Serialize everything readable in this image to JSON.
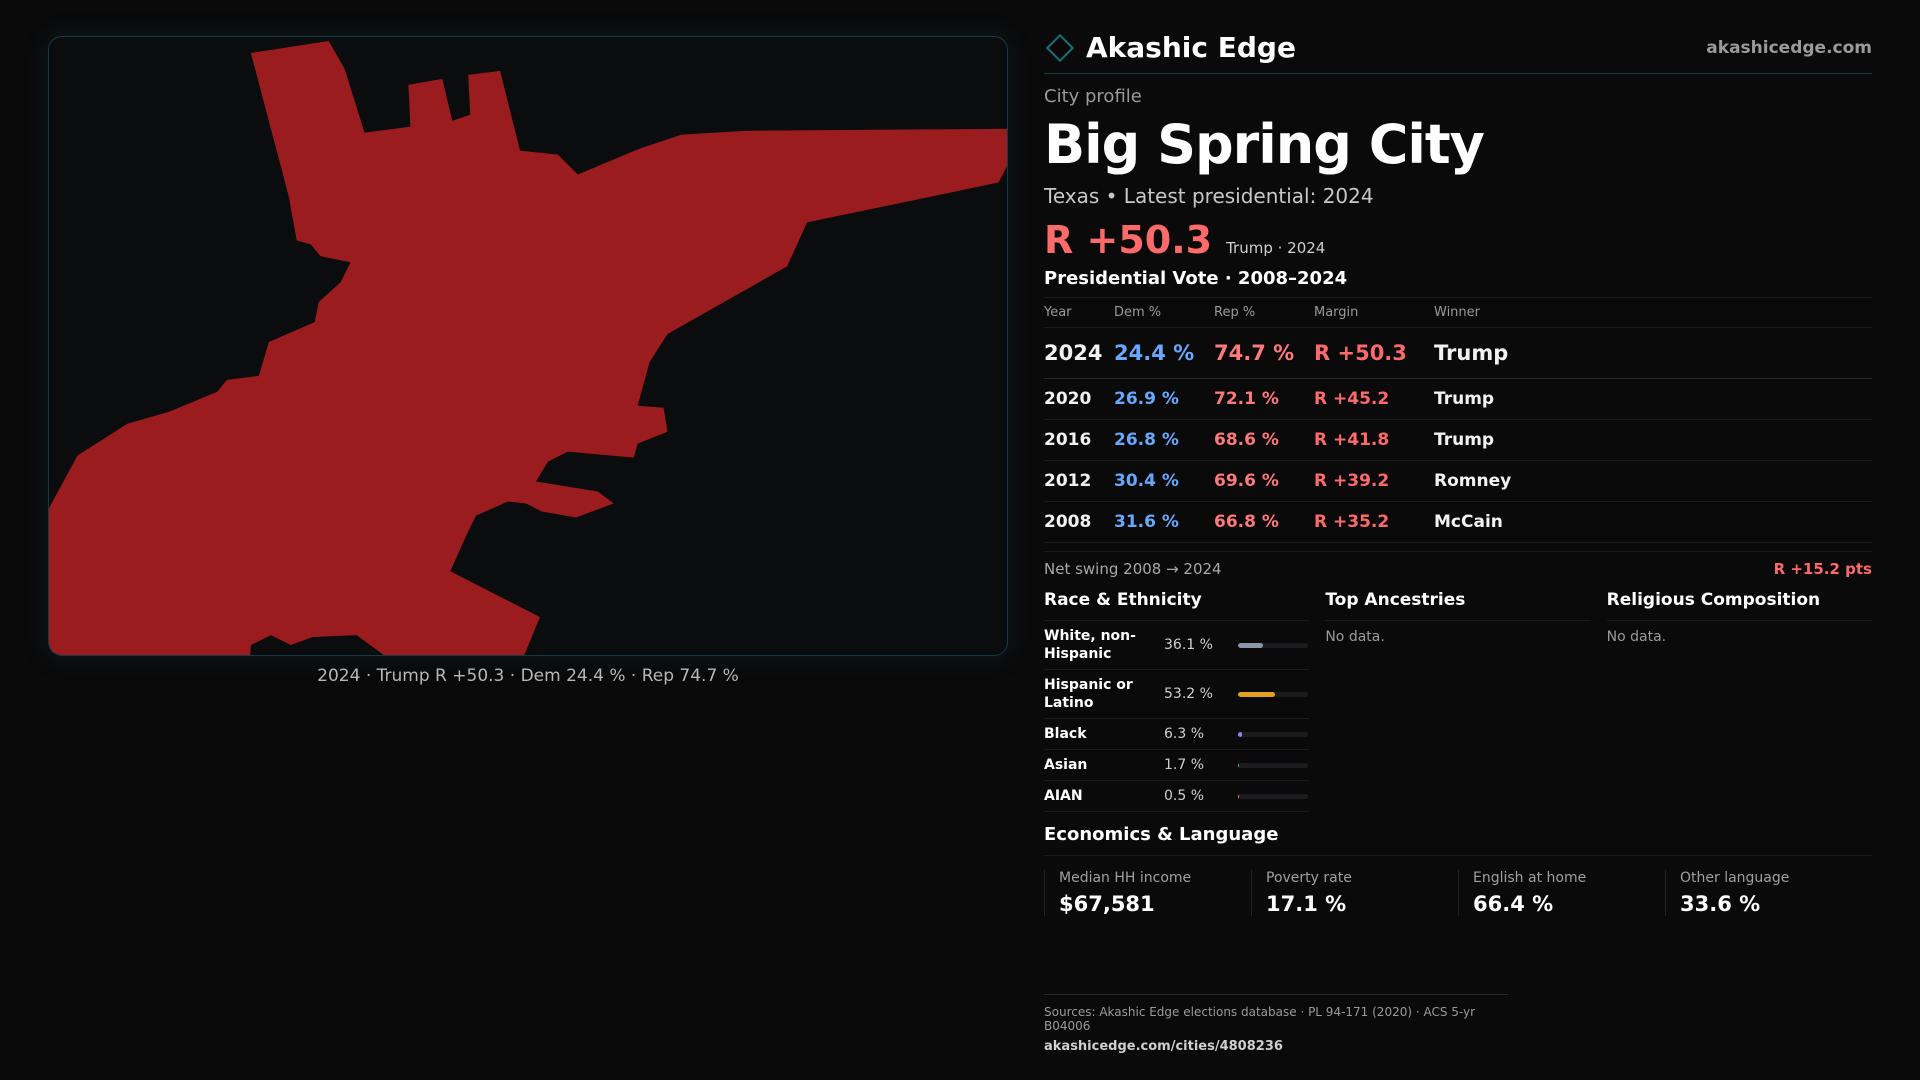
{
  "brand": {
    "name": "Akashic Edge",
    "site": "akashicedge.com"
  },
  "map": {
    "fill_color": "#9b1c1f",
    "caption": "2024 · Trump R +50.3 · Dem 24.4 % · Rep 74.7 %"
  },
  "profile": {
    "eyebrow": "City profile",
    "title": "Big Spring City",
    "subline": "Texas • Latest presidential: 2024",
    "margin": "R +50.3",
    "margin_sub": "Trump · 2024"
  },
  "votes": {
    "title": "Presidential Vote · 2008–2024",
    "headers": {
      "year": "Year",
      "dem": "Dem %",
      "rep": "Rep %",
      "margin": "Margin",
      "winner": "Winner"
    },
    "rows": [
      {
        "year": "2024",
        "dem": "24.4 %",
        "rep": "74.7 %",
        "margin": "R +50.3",
        "winner": "Trump"
      },
      {
        "year": "2020",
        "dem": "26.9 %",
        "rep": "72.1 %",
        "margin": "R +45.2",
        "winner": "Trump"
      },
      {
        "year": "2016",
        "dem": "26.8 %",
        "rep": "68.6 %",
        "margin": "R +41.8",
        "winner": "Trump"
      },
      {
        "year": "2012",
        "dem": "30.4 %",
        "rep": "69.6 %",
        "margin": "R +39.2",
        "winner": "Romney"
      },
      {
        "year": "2008",
        "dem": "31.6 %",
        "rep": "66.8 %",
        "margin": "R +35.2",
        "winner": "McCain"
      }
    ],
    "swing_label": "Net swing 2008 → 2024",
    "swing_value": "R +15.2 pts"
  },
  "race": {
    "title": "Race & Ethnicity",
    "rows": [
      {
        "label": "White, non-Hispanic",
        "value": "36.1 %",
        "fraction": 0.361,
        "color": "#8e96a8"
      },
      {
        "label": "Hispanic or Latino",
        "value": "53.2 %",
        "fraction": 0.532,
        "color": "#e5a021"
      },
      {
        "label": "Black",
        "value": "6.3 %",
        "fraction": 0.063,
        "color": "#8f86ff"
      },
      {
        "label": "Asian",
        "value": "1.7 %",
        "fraction": 0.017,
        "color": "#3fbfae"
      },
      {
        "label": "AIAN",
        "value": "0.5 %",
        "fraction": 0.005,
        "color": "#ff8a4a"
      }
    ]
  },
  "ancestries": {
    "title": "Top Ancestries",
    "empty": "No data."
  },
  "religion": {
    "title": "Religious Composition",
    "empty": "No data."
  },
  "economics": {
    "title": "Economics & Language",
    "cells": [
      {
        "label": "Median HH income",
        "value": "$67,581"
      },
      {
        "label": "Poverty rate",
        "value": "17.1 %"
      },
      {
        "label": "English at home",
        "value": "66.4 %"
      },
      {
        "label": "Other language",
        "value": "33.6 %"
      }
    ]
  },
  "sources": {
    "line": "Sources: Akashic Edge elections database · PL 94-171 (2020) · ACS 5-yr B04006",
    "url": "akashicedge.com/cities/4808236"
  }
}
